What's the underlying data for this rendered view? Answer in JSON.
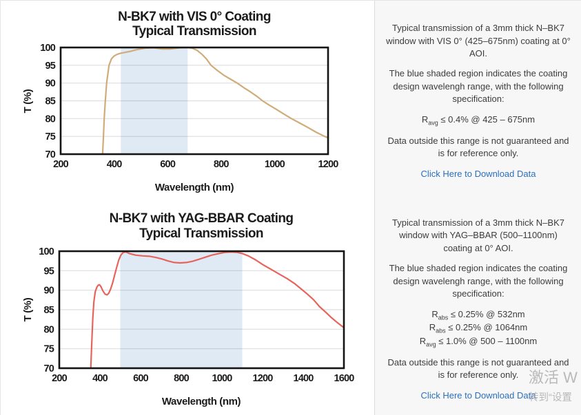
{
  "panels": [
    {
      "description_1": "Typical transmission of a 3mm thick N–BK7 window with VIS 0° (425–675nm) coating at 0° AOI.",
      "description_2": "The blue shaded region indicates the coating design wavelengh range, with the following specification:",
      "specs": [
        {
          "base": "R",
          "sub": "avg",
          "rest": " ≤ 0.4% @ 425 – 675nm"
        }
      ],
      "description_3": "Data outside this range is not guaranteed and is for reference only.",
      "download_link": "Click Here to Download Data"
    },
    {
      "description_1": "Typical transmission of a 3mm thick N–BK7 window with YAG–BBAR (500–1100nm) coating at 0° AOI.",
      "description_2": "The blue shaded region indicates the coating design wavelengh range, with the following specification:",
      "specs": [
        {
          "base": "R",
          "sub": "abs",
          "rest": " ≤ 0.25% @ 532nm"
        },
        {
          "base": "R",
          "sub": "abs",
          "rest": " ≤ 0.25% @ 1064nm"
        },
        {
          "base": "R",
          "sub": "avg",
          "rest": " ≤ 1.0% @ 500 – 1100nm"
        }
      ],
      "description_3": "Data outside this range is not guaranteed and is for reference only.",
      "download_link": "Click Here to Download Data"
    }
  ],
  "watermark": {
    "line1": "激活 W",
    "line2": "转到“设置"
  },
  "colors": {
    "link": "#2a6fbf",
    "panel_background": "#f7f7f7",
    "band_blue": "#dfeaf4",
    "vis_curve_tan": "#cfac79",
    "yag_curve_red": "#e7645c"
  },
  "chart_data": [
    {
      "type": "line",
      "title": "N-BK7 with VIS 0° Coating",
      "subtitle": "Typical Transmission",
      "xlabel": "Wavelength (nm)",
      "ylabel": "T (%)",
      "xlim": [
        200,
        1200
      ],
      "ylim": [
        70,
        100
      ],
      "xticks": [
        200,
        400,
        600,
        800,
        1000,
        1200
      ],
      "yticks": [
        70,
        75,
        80,
        85,
        90,
        95,
        100
      ],
      "grid": "horizontal",
      "band": {
        "x0": 425,
        "x1": 675,
        "color": "#dfeaf4",
        "meaning": "coating design wavelength range"
      },
      "series": [
        {
          "name": "VIS 0° coated N-BK7 typical transmission",
          "color": "#cfac79",
          "x": [
            357,
            360,
            363,
            367,
            372,
            381,
            390,
            400,
            412,
            425,
            440,
            460,
            485,
            515,
            550,
            580,
            610,
            645,
            675,
            692,
            710,
            728,
            746,
            762,
            785,
            810,
            835,
            860,
            885,
            910,
            935,
            955,
            980,
            1005,
            1030,
            1063,
            1095,
            1125,
            1155,
            1187,
            1200
          ],
          "y": [
            70,
            75,
            80,
            85,
            90,
            95,
            96.8,
            97.6,
            98.1,
            98.4,
            98.6,
            98.9,
            99.4,
            99.8,
            99.9,
            99.6,
            99.6,
            99.9,
            100,
            99.8,
            99.2,
            98.1,
            96.7,
            95,
            93.6,
            92.2,
            91.1,
            90,
            88.7,
            87.5,
            86.2,
            85,
            83.8,
            82.7,
            81.5,
            80,
            78.7,
            77.5,
            76.2,
            75,
            74.6
          ]
        }
      ]
    },
    {
      "type": "line",
      "title": "N-BK7 with YAG-BBAR Coating",
      "subtitle": "Typical Transmission",
      "xlabel": "Wavelength (nm)",
      "ylabel": "T (%)",
      "xlim": [
        200,
        1600
      ],
      "ylim": [
        70,
        100
      ],
      "xticks": [
        200,
        400,
        600,
        800,
        1000,
        1200,
        1400,
        1600
      ],
      "yticks": [
        70,
        75,
        80,
        85,
        90,
        95,
        100
      ],
      "grid": "horizontal",
      "band": {
        "x0": 500,
        "x1": 1100,
        "color": "#dfeaf4",
        "meaning": "coating design wavelength range"
      },
      "series": [
        {
          "name": "YAG-BBAR coated N-BK7 typical transmission",
          "color": "#e7645c",
          "x": [
            355,
            358,
            361,
            365,
            370,
            377,
            385,
            392,
            398,
            405,
            415,
            425,
            435,
            443,
            452,
            462,
            472,
            483,
            493,
            503,
            515,
            528,
            545,
            575,
            610,
            645,
            675,
            705,
            735,
            765,
            795,
            825,
            855,
            885,
            915,
            950,
            985,
            1015,
            1045,
            1075,
            1100,
            1130,
            1165,
            1200,
            1240,
            1280,
            1320,
            1360,
            1395,
            1420,
            1450,
            1480,
            1510,
            1540,
            1570,
            1600
          ],
          "y": [
            70,
            74,
            78,
            83,
            87,
            89.6,
            90.8,
            91.3,
            91.4,
            90.9,
            89.8,
            89,
            88.8,
            89.2,
            90.2,
            91.8,
            93.8,
            96,
            97.8,
            99,
            99.7,
            99.8,
            99.4,
            99,
            98.8,
            98.7,
            98.4,
            98,
            97.5,
            97.1,
            97,
            97.1,
            97.4,
            97.9,
            98.4,
            99,
            99.4,
            99.7,
            99.8,
            99.7,
            99.4,
            98.8,
            97.8,
            96.6,
            95.4,
            94.2,
            93,
            91.6,
            90.1,
            89,
            87.6,
            85.8,
            84.4,
            82.9,
            81.6,
            80.4
          ]
        }
      ]
    }
  ]
}
